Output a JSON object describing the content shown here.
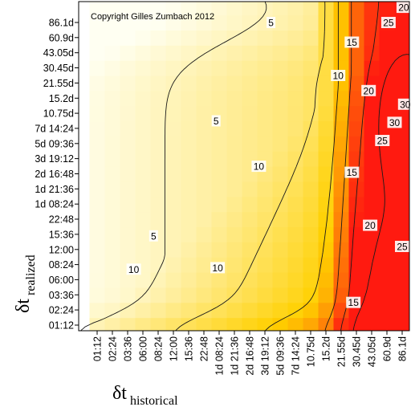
{
  "chart_data": {
    "type": "heatmap",
    "title": "",
    "copyright": "Copyright Gilles Zumbach 2012",
    "xlabel": {
      "symbol": "δt",
      "subscript": "historical"
    },
    "ylabel": {
      "symbol": "δt",
      "subscript": "realized"
    },
    "x_ticks": [
      "01:12",
      "02:24",
      "03:36",
      "06:00",
      "08:24",
      "12:00",
      "15:36",
      "22:48",
      "1d 08:24",
      "1d 21:36",
      "2d 16:48",
      "3d 19:12",
      "5d 09:36",
      "7d 14:24",
      "10.75d",
      "15.2d",
      "21.55d",
      "30.45d",
      "43.05d",
      "60.9d",
      "86.1d"
    ],
    "y_ticks": [
      "01:12",
      "02:24",
      "03:36",
      "06:00",
      "08:24",
      "12:00",
      "15:36",
      "22:48",
      "1d 08:24",
      "1d 21:36",
      "2d 16:48",
      "3d 19:12",
      "5d 09:36",
      "7d 14:24",
      "10.75d",
      "15.2d",
      "21.55d",
      "30.45d",
      "43.05d",
      "60.9d",
      "86.1d"
    ],
    "contour_levels": [
      5,
      10,
      15,
      20,
      25,
      30
    ],
    "contour_labels": [
      {
        "text": "5",
        "xi": 11.4,
        "yi": 20.0
      },
      {
        "text": "5",
        "xi": 7.8,
        "yi": 13.5
      },
      {
        "text": "5",
        "xi": 3.7,
        "yi": 5.9
      },
      {
        "text": "10",
        "xi": 15.8,
        "yi": 16.5
      },
      {
        "text": "10",
        "xi": 10.6,
        "yi": 10.5
      },
      {
        "text": "10",
        "xi": 7.9,
        "yi": 3.8
      },
      {
        "text": "10",
        "xi": 2.4,
        "yi": 3.7
      },
      {
        "text": "15",
        "xi": 16.7,
        "yi": 18.7
      },
      {
        "text": "15",
        "xi": 16.7,
        "yi": 10.1
      },
      {
        "text": "15",
        "xi": 16.8,
        "yi": 1.5
      },
      {
        "text": "20",
        "xi": 17.8,
        "yi": 15.5
      },
      {
        "text": "20",
        "xi": 17.9,
        "yi": 6.6
      },
      {
        "text": "20",
        "xi": 20.1,
        "yi": 21.0
      },
      {
        "text": "25",
        "xi": 19.1,
        "yi": 20.0
      },
      {
        "text": "25",
        "xi": 18.7,
        "yi": 12.2
      },
      {
        "text": "25",
        "xi": 20.0,
        "yi": 5.2
      },
      {
        "text": "30",
        "xi": 20.2,
        "yi": 14.6
      },
      {
        "text": "30",
        "xi": 19.5,
        "yi": 13.4
      }
    ],
    "colors": {
      "low": "#fffff2",
      "mid": "#ffd000",
      "high": "#ff1a10"
    },
    "colorscale": "heat",
    "grid": false,
    "legend": "none"
  }
}
